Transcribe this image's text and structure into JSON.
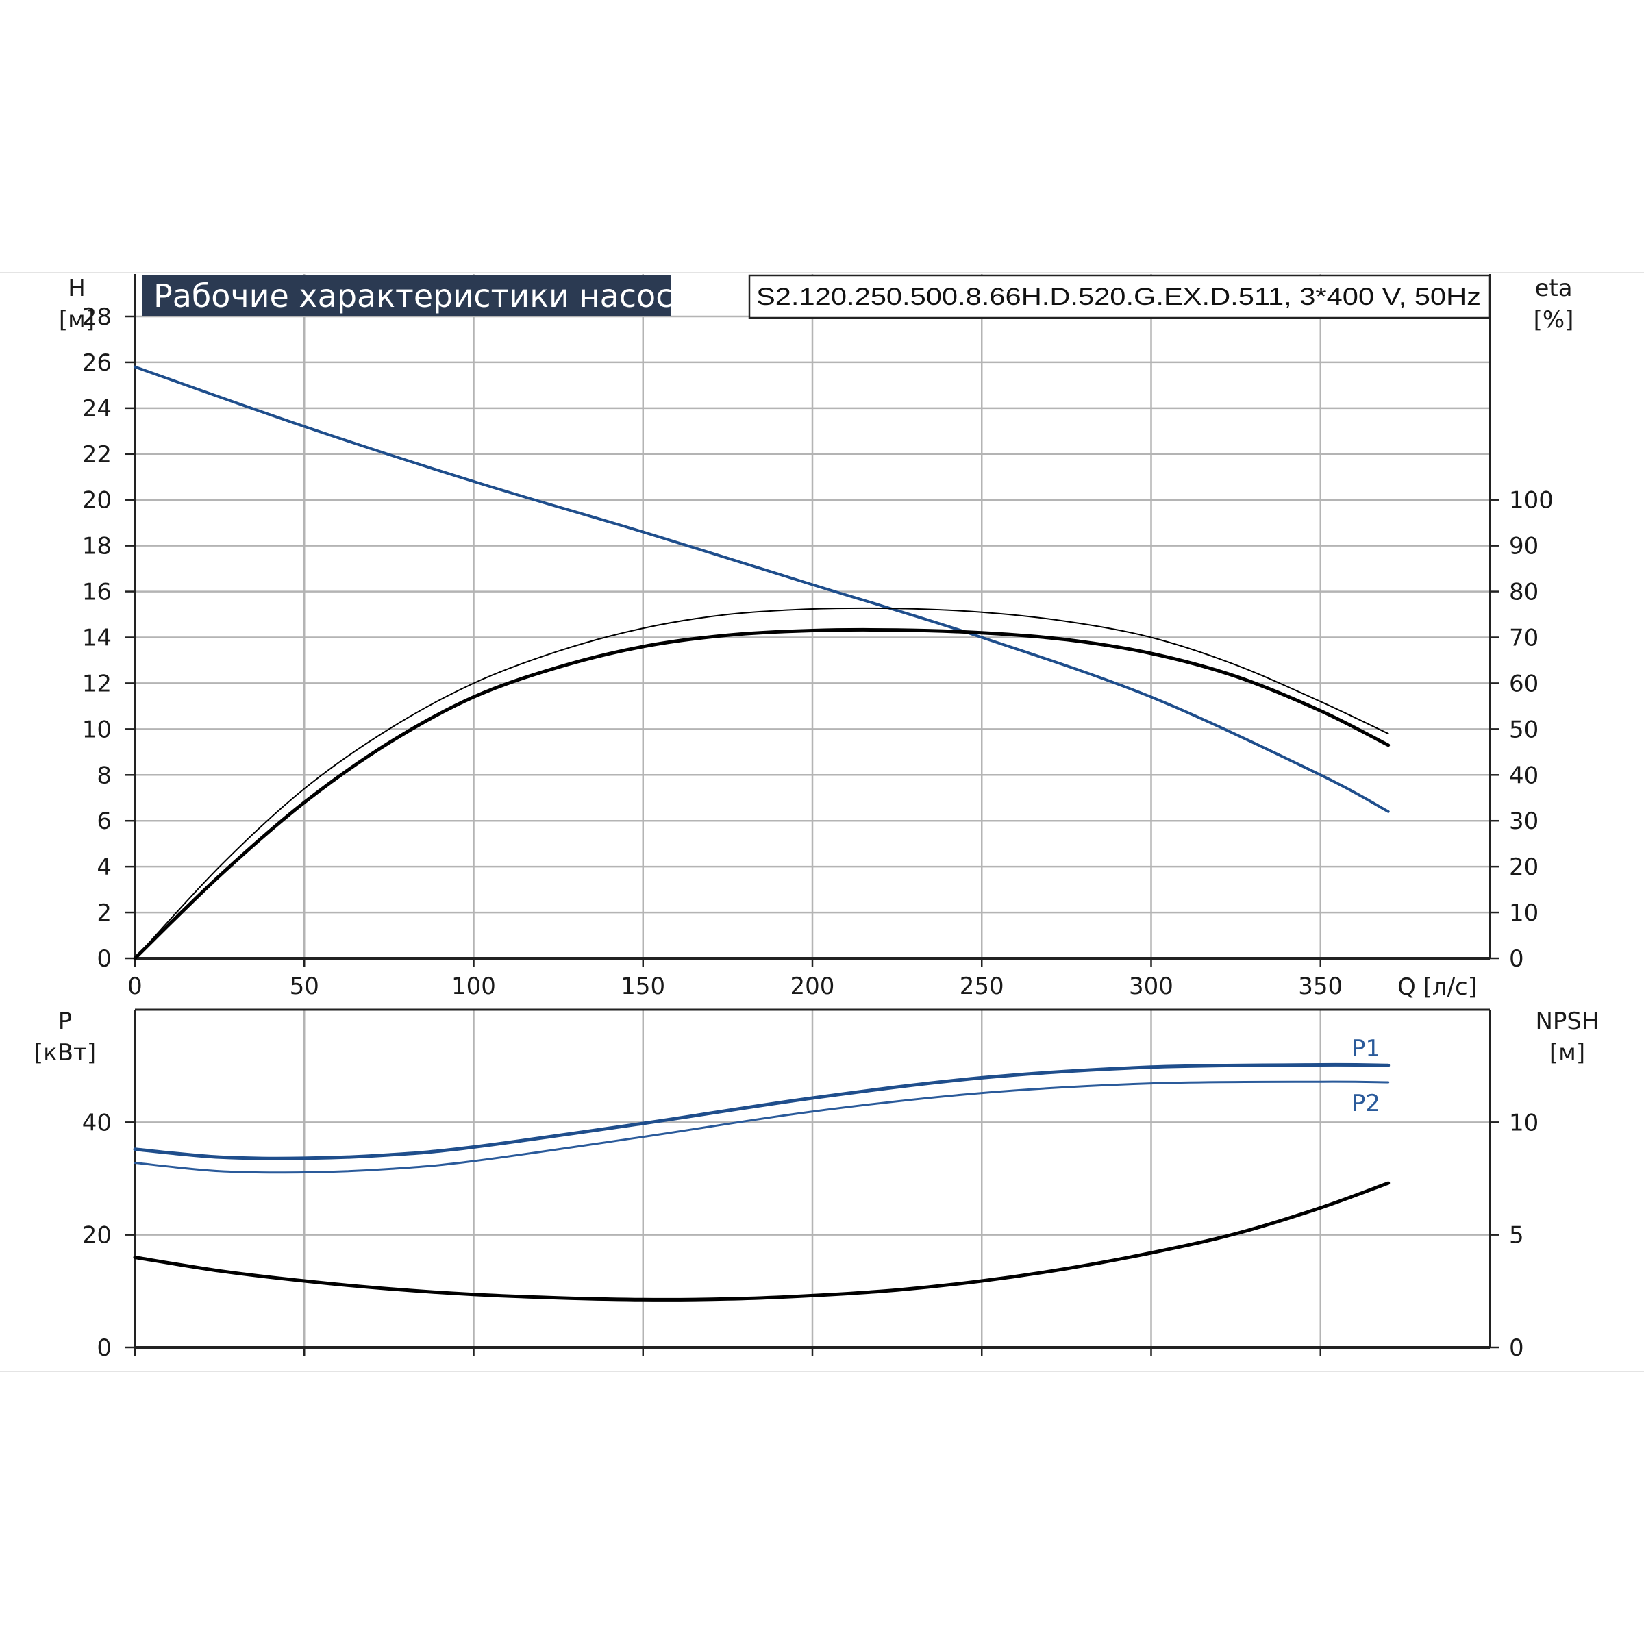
{
  "title": "Рабочие характеристики насоса",
  "model": "S2.120.250.500.8.66H.D.520.G.EX.D.511, 3*400 V, 50Hz",
  "colors": {
    "blue": "#1f4e8c",
    "blue_light": "#2a5a9a",
    "black": "#000000",
    "grid": "#b4b4b4",
    "title_bg": "#2b3a52"
  },
  "chart_data": [
    {
      "type": "line",
      "name": "performance",
      "x_label": "Q [л/с]",
      "y_left_label_line1": "H",
      "y_left_label_line2": "[м]",
      "y_right_label_line1": "eta",
      "y_right_label_line2": "[%]",
      "xlim": [
        0,
        400
      ],
      "x_ticks": [
        0,
        50,
        100,
        150,
        200,
        250,
        300,
        350
      ],
      "x_tick_labels": [
        "0",
        "50",
        "100",
        "150",
        "200",
        "250",
        "300",
        "350"
      ],
      "ylim_left": [
        0,
        28
      ],
      "y_left_ticks": [
        0,
        2,
        4,
        6,
        8,
        10,
        12,
        14,
        16,
        18,
        20,
        22,
        24,
        26,
        28
      ],
      "y_left_tick_labels": [
        "0",
        "2",
        "4",
        "6",
        "8",
        "10",
        "12",
        "14",
        "16",
        "18",
        "20",
        "22",
        "24",
        "26",
        "28"
      ],
      "ylim_right": [
        0,
        140
      ],
      "y_right_ticks": [
        0,
        10,
        20,
        30,
        40,
        50,
        60,
        70,
        80,
        90,
        100
      ],
      "y_right_tick_labels": [
        "0",
        "10",
        "20",
        "30",
        "40",
        "50",
        "60",
        "70",
        "80",
        "90",
        "100"
      ],
      "grid": true,
      "series": [
        {
          "axis": "left",
          "color": "blue",
          "width": 4,
          "x": [
            0,
            50,
            100,
            150,
            200,
            220,
            250,
            300,
            350,
            370
          ],
          "y": [
            25.8,
            23.2,
            20.8,
            18.6,
            16.3,
            15.4,
            14.0,
            11.4,
            8.0,
            6.4
          ]
        },
        {
          "axis": "right",
          "color": "black",
          "width": 2,
          "x": [
            0,
            25,
            50,
            75,
            100,
            125,
            150,
            175,
            200,
            225,
            250,
            275,
            300,
            325,
            350,
            370
          ],
          "y": [
            0,
            20,
            37,
            50,
            60,
            67,
            72,
            75,
            76.2,
            76.3,
            75.5,
            73.5,
            70,
            64,
            56,
            49
          ]
        },
        {
          "axis": "right",
          "color": "black",
          "width": 5,
          "x": [
            0,
            25,
            50,
            75,
            100,
            125,
            150,
            175,
            200,
            225,
            250,
            275,
            300,
            325,
            350,
            370
          ],
          "y": [
            0,
            18,
            34,
            47,
            57,
            63.5,
            68,
            70.5,
            71.5,
            71.6,
            71,
            69.5,
            66.5,
            61.5,
            54,
            46.5
          ]
        }
      ]
    },
    {
      "type": "line",
      "name": "power_npsh",
      "x_label": "",
      "y_left_label_line1": "P",
      "y_left_label_line2": "[кВт]",
      "y_right_label_line1": "NPSH",
      "y_right_label_line2": "[м]",
      "xlim": [
        0,
        400
      ],
      "x_ticks": [
        0,
        50,
        100,
        150,
        200,
        250,
        300,
        350
      ],
      "ylim_left": [
        0,
        60
      ],
      "y_left_ticks": [
        0,
        20,
        40
      ],
      "y_left_tick_labels": [
        "0",
        "20",
        "40"
      ],
      "ylim_right": [
        0,
        15
      ],
      "y_right_ticks": [
        0,
        5,
        10
      ],
      "y_right_tick_labels": [
        "0",
        "5",
        "10"
      ],
      "grid": true,
      "series": [
        {
          "name": "P1",
          "axis": "left",
          "color": "blue",
          "width": 5,
          "x": [
            0,
            25,
            50,
            75,
            100,
            150,
            200,
            250,
            300,
            350,
            370
          ],
          "y": [
            35.2,
            33.8,
            33.6,
            34.2,
            35.6,
            39.8,
            44.3,
            47.9,
            49.8,
            50.2,
            50.1
          ]
        },
        {
          "name": "P2",
          "axis": "left",
          "color": "blue_light",
          "width": 3,
          "x": [
            0,
            25,
            50,
            75,
            100,
            150,
            200,
            250,
            300,
            350,
            370
          ],
          "y": [
            32.8,
            31.3,
            31.1,
            31.7,
            33.1,
            37.4,
            41.9,
            45.2,
            46.9,
            47.2,
            47.1
          ]
        },
        {
          "axis": "right",
          "color": "black",
          "width": 5,
          "x": [
            0,
            25,
            50,
            75,
            100,
            125,
            150,
            175,
            200,
            225,
            250,
            275,
            300,
            325,
            350,
            370
          ],
          "y": [
            4.0,
            3.4,
            2.95,
            2.6,
            2.35,
            2.2,
            2.12,
            2.15,
            2.3,
            2.55,
            2.95,
            3.5,
            4.2,
            5.05,
            6.2,
            7.3
          ]
        }
      ]
    }
  ]
}
